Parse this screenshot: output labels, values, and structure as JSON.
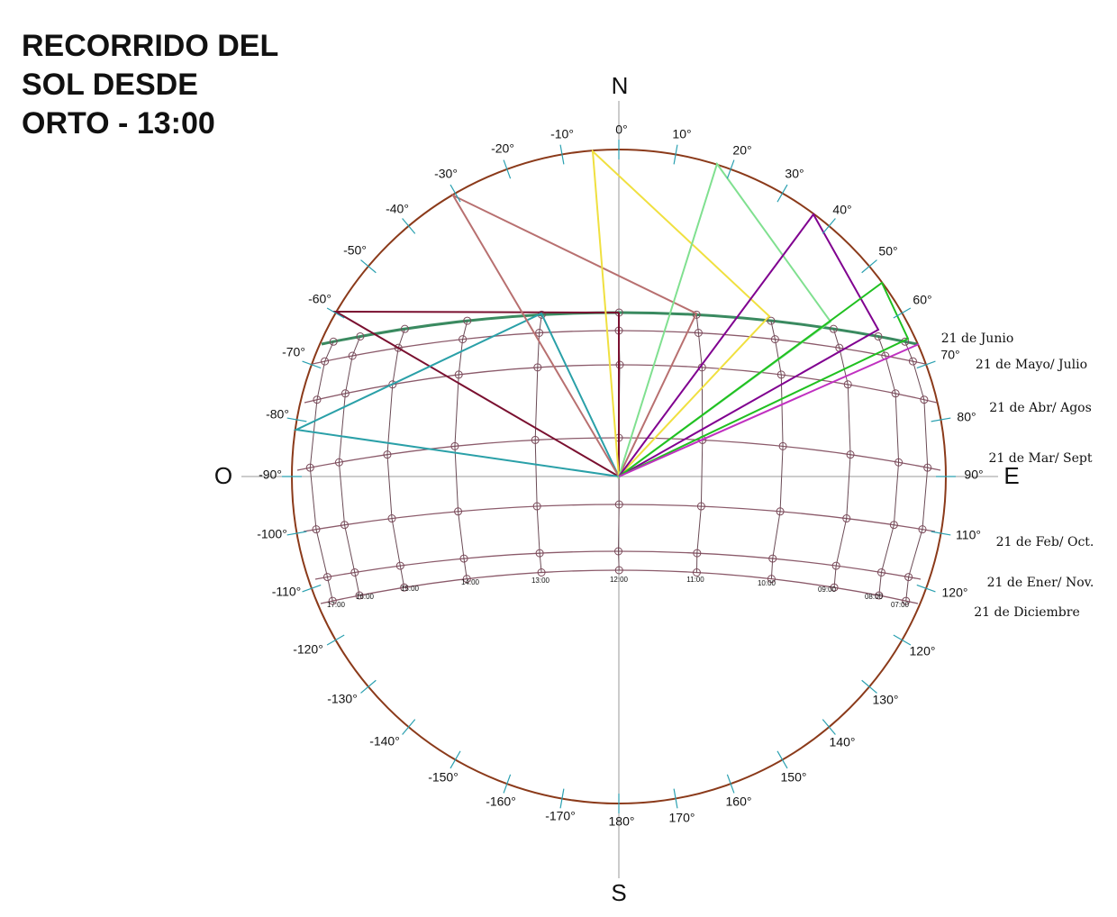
{
  "title": [
    "RECORRIDO DEL",
    "SOL DESDE",
    "ORTO - 13:00"
  ],
  "cardinals": [
    "N",
    "E",
    "S",
    "O"
  ],
  "azimuth_labels": [
    "0°",
    "10°",
    "20°",
    "30°",
    "40°",
    "50°",
    "60°",
    "70°",
    "80°",
    "90°",
    "110°",
    "120°",
    "120°",
    "130°",
    "140°",
    "150°",
    "160°",
    "170°",
    "180°",
    "-10°",
    "-20°",
    "-30°",
    "-40°",
    "-50°",
    "-60°",
    "-70°",
    "-80°",
    "-90°",
    "-100°",
    "-110°",
    "-120°",
    "-130°",
    "-140°",
    "-150°",
    "-160°",
    "-170°"
  ],
  "path_labels": [
    "21 de Junio",
    "21 de Mayo/ Julio",
    "21 de Abr/ Agos",
    "21 de Mar/ Sept",
    "21 de Feb/ Oct.",
    "21 de Ener/ Nov.",
    "21 de Diciembre"
  ],
  "hour_labels": [
    "17:00",
    "16:00",
    "15:00",
    "14:00",
    "13:00",
    "12:00",
    "11:00",
    "10:00",
    "09:00",
    "08:00",
    "07:00"
  ]
}
